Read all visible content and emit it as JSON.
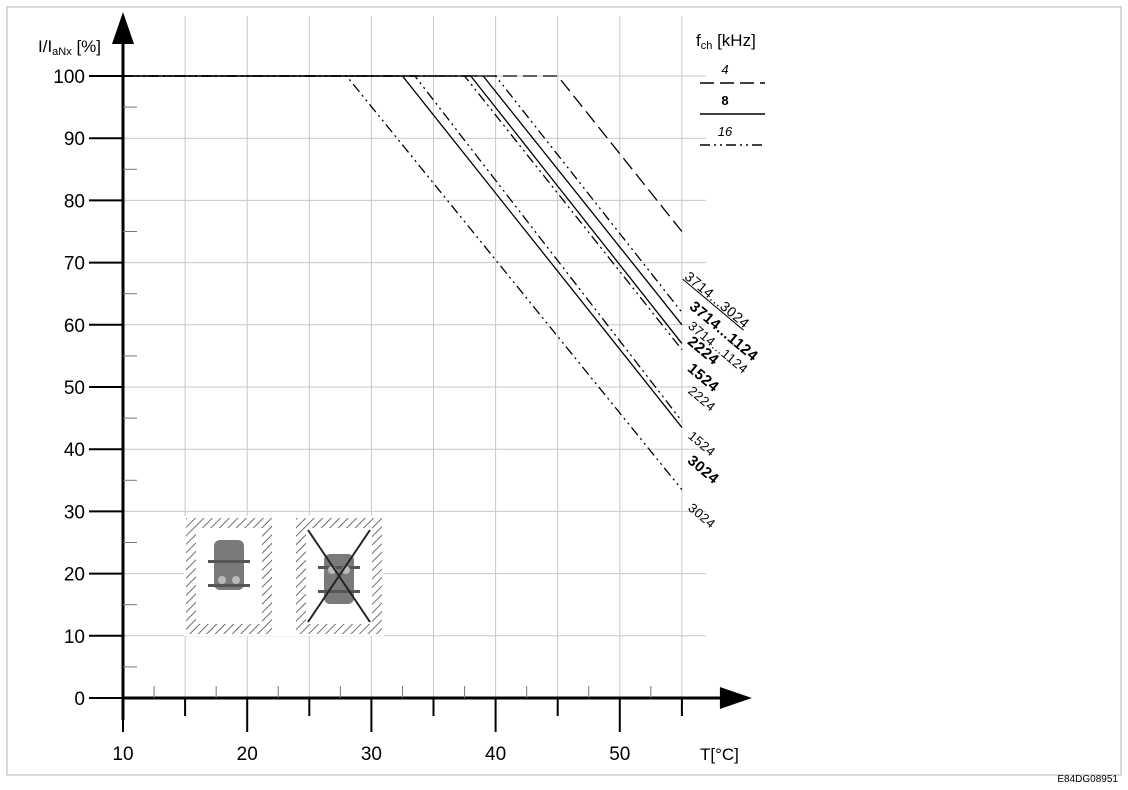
{
  "chart_data": {
    "type": "line",
    "ylabel": "I/IaNx [%]",
    "ylabel_main": "I/I",
    "ylabel_sub": "aNx",
    "ylabel_unit": " [%]",
    "xlabel": "T[°C]",
    "xlim": [
      10,
      55
    ],
    "ylim": [
      0,
      100
    ],
    "x_ticks": [
      "10",
      "20",
      "30",
      "40",
      "50"
    ],
    "y_ticks": [
      "0",
      "10",
      "20",
      "30",
      "40",
      "50",
      "60",
      "70",
      "80",
      "90",
      "100"
    ],
    "grid": true,
    "legend": {
      "title": "fch [kHz]",
      "title_main": "f",
      "title_sub": "ch",
      "title_unit": " [kHz]",
      "entries": [
        {
          "label": "4",
          "style": "dashed"
        },
        {
          "label": "8",
          "style": "solid"
        },
        {
          "label": "16",
          "style": "dashdotdot"
        }
      ]
    },
    "series": [
      {
        "style": "dashed",
        "x": [
          10,
          45,
          55
        ],
        "y": [
          100,
          100,
          75
        ]
      },
      {
        "style": "solid",
        "x": [
          10,
          39,
          55
        ],
        "y": [
          100,
          100,
          60
        ]
      },
      {
        "style": "solid",
        "x": [
          10,
          38,
          55
        ],
        "y": [
          100,
          100,
          57
        ]
      },
      {
        "style": "solid",
        "x": [
          10,
          32.5,
          55
        ],
        "y": [
          100,
          100,
          43.5
        ]
      },
      {
        "style": "dashdotdot",
        "x": [
          10,
          40,
          55
        ],
        "y": [
          100,
          100,
          62
        ]
      },
      {
        "style": "dashdotdot",
        "x": [
          10,
          37.5,
          55
        ],
        "y": [
          100,
          100,
          56
        ]
      },
      {
        "style": "dashdotdot",
        "x": [
          10,
          33.5,
          55
        ],
        "y": [
          100,
          100,
          44.5
        ]
      },
      {
        "style": "dashdotdot",
        "x": [
          10,
          28,
          55
        ],
        "y": [
          100,
          100,
          33.5
        ]
      }
    ],
    "annotations": [
      "3714...3024",
      "3714...1124",
      "3714...1124",
      "2224",
      "1524",
      "2224",
      "1524",
      "3024",
      "3024"
    ],
    "figure_code": "E84DG08951"
  },
  "colors": {
    "line": "#000000",
    "grid": "#c8c8c8",
    "frame": "#d9d9d9",
    "hatch": "#707070",
    "device": "#7a7a7a"
  },
  "icons": [
    "mounting-allowed-icon",
    "mounting-not-allowed-icon"
  ]
}
